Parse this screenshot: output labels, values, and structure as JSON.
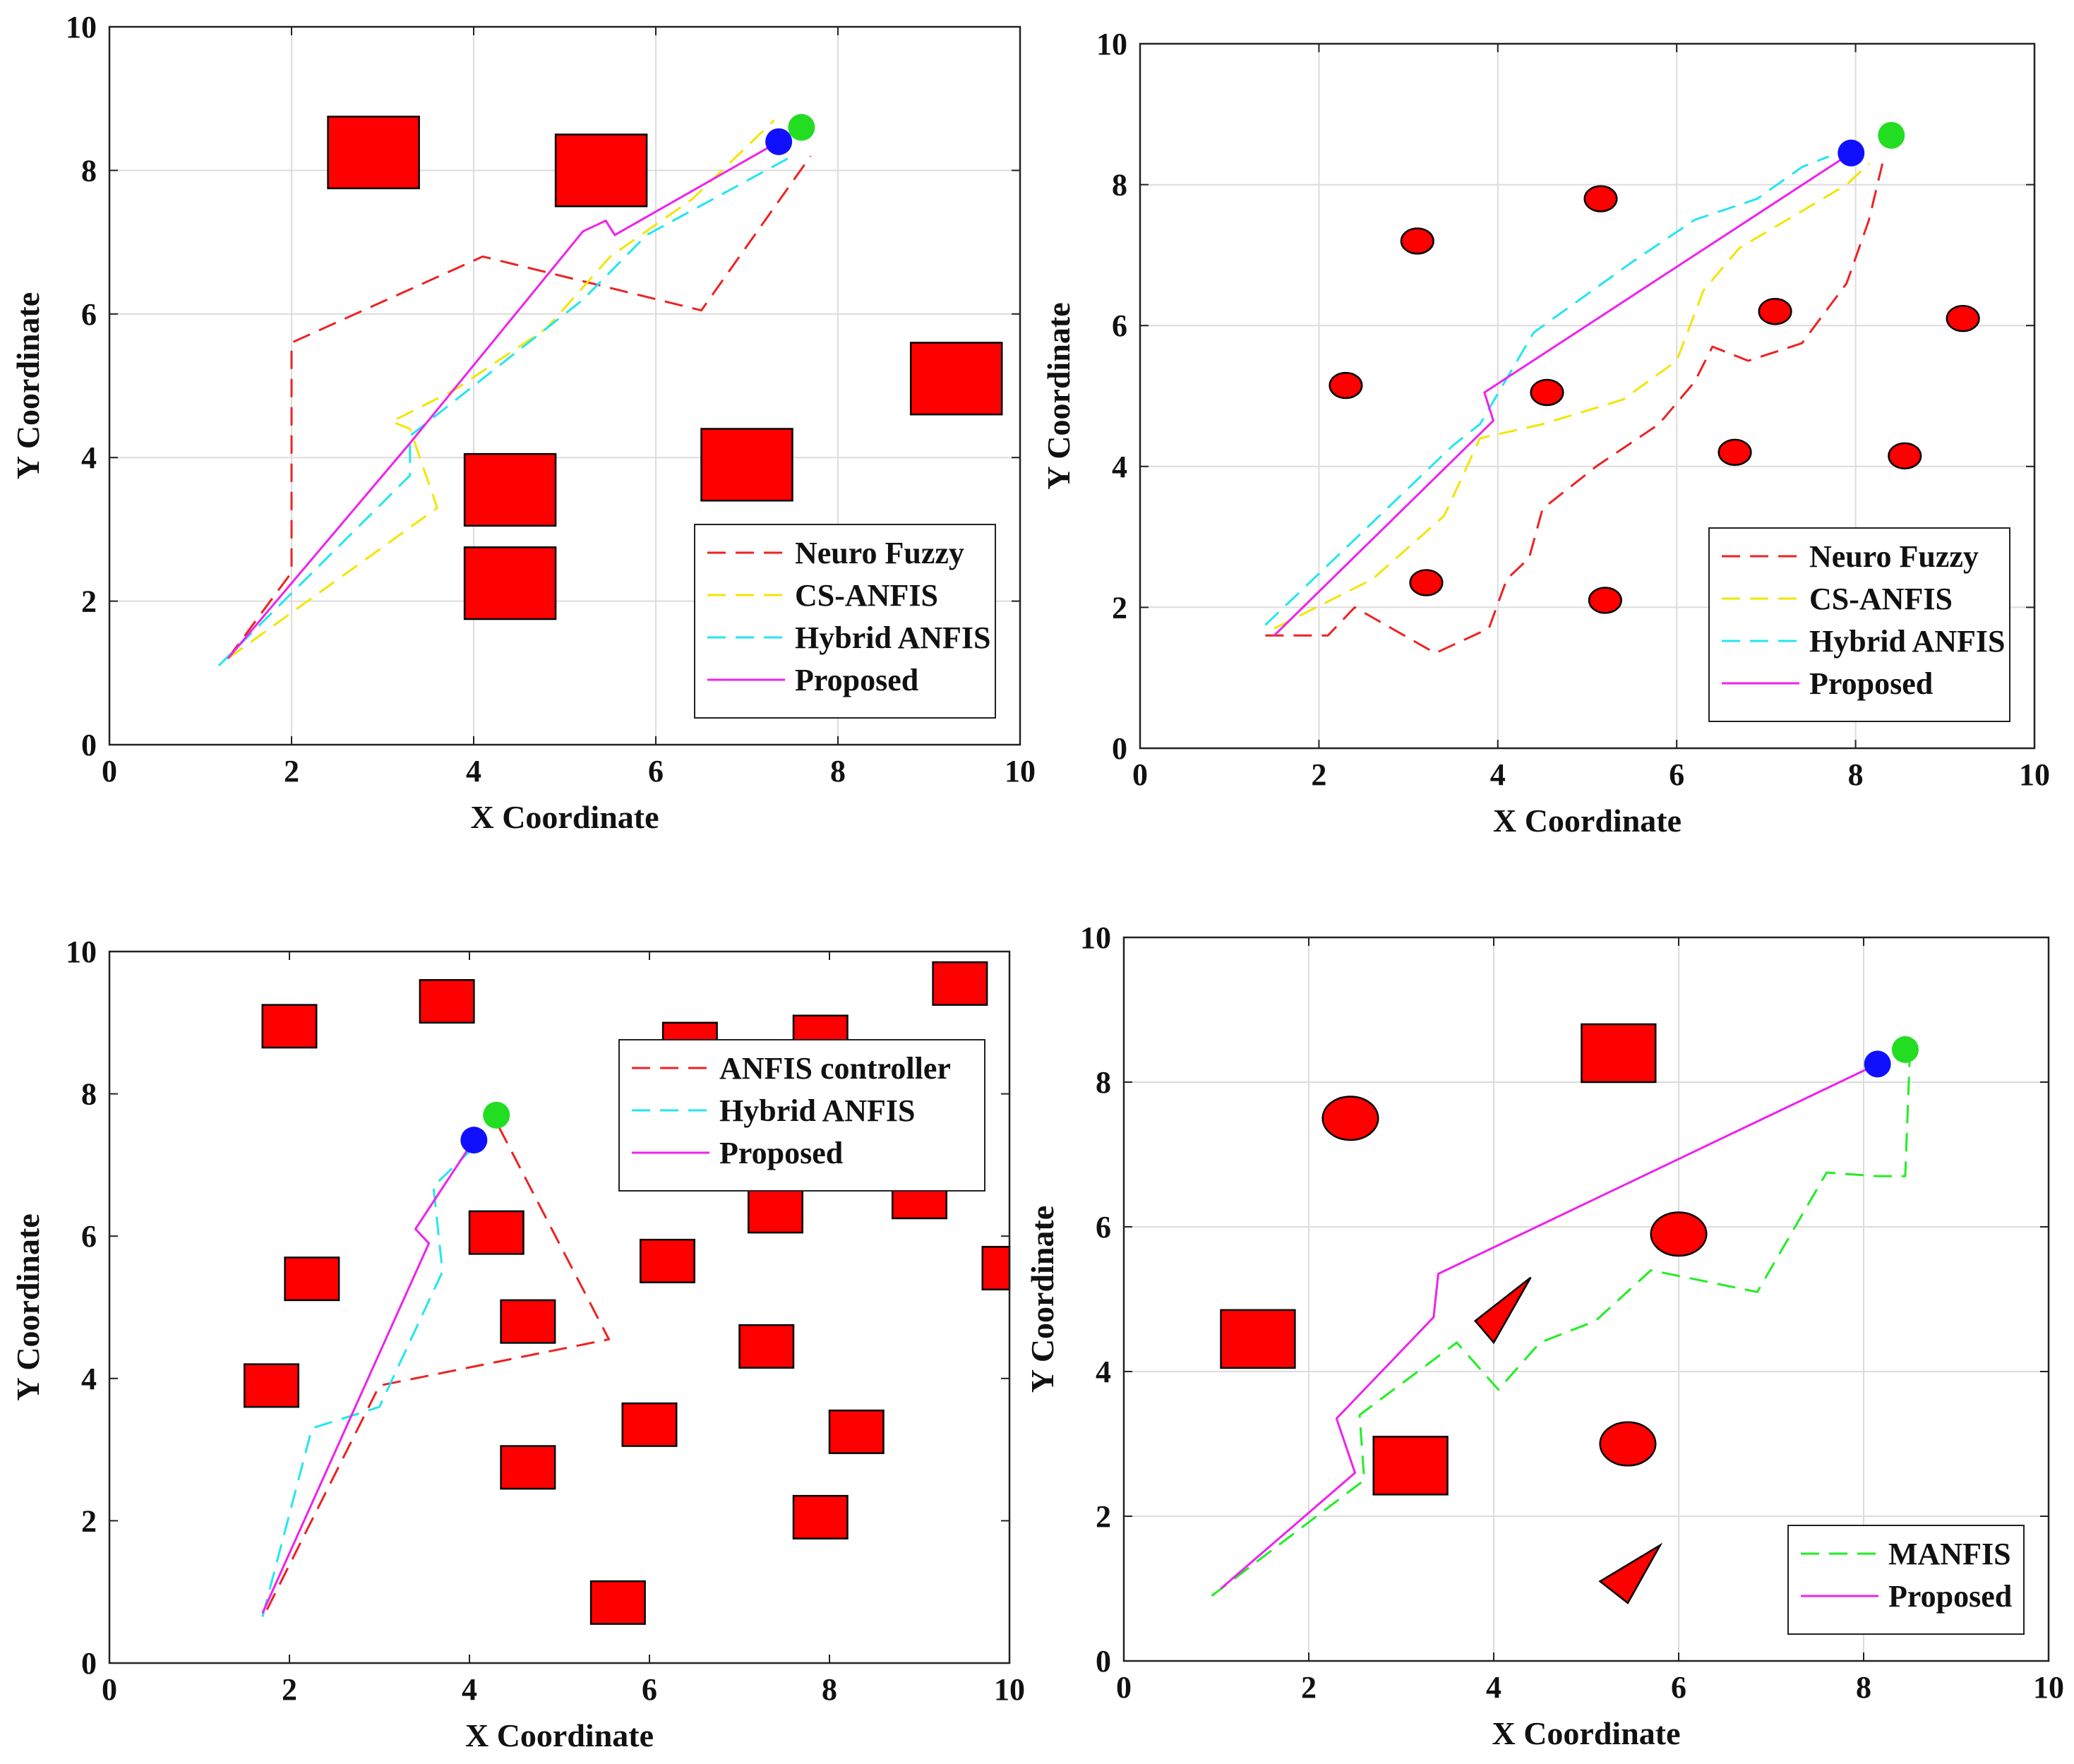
{
  "chart_data": [
    {
      "type": "line",
      "panel": "top-left",
      "xlabel": "X Coordinate",
      "ylabel": "Y Coordinate",
      "xlim": [
        0,
        10
      ],
      "ylim": [
        0,
        10
      ],
      "xticks": [
        "0",
        "2",
        "4",
        "6",
        "8",
        "10"
      ],
      "yticks": [
        "0",
        "2",
        "4",
        "6",
        "8",
        "10"
      ],
      "grid": true,
      "legend_position": "bottom-right",
      "start_marker": {
        "x": 7.6,
        "y": 8.6,
        "color": "#22dd22"
      },
      "goal_marker": {
        "x": 7.35,
        "y": 8.4,
        "color": "#1010ff"
      },
      "obstacles": [
        {
          "shape": "rect",
          "x0": 2.4,
          "y0": 7.75,
          "x1": 3.4,
          "y1": 8.75
        },
        {
          "shape": "rect",
          "x0": 4.9,
          "y0": 7.5,
          "x1": 5.9,
          "y1": 8.5
        },
        {
          "shape": "rect",
          "x0": 8.8,
          "y0": 4.6,
          "x1": 9.8,
          "y1": 5.6
        },
        {
          "shape": "rect",
          "x0": 3.9,
          "y0": 3.05,
          "x1": 4.9,
          "y1": 4.05
        },
        {
          "shape": "rect",
          "x0": 6.5,
          "y0": 3.4,
          "x1": 7.5,
          "y1": 4.4
        },
        {
          "shape": "rect",
          "x0": 3.9,
          "y0": 1.75,
          "x1": 4.9,
          "y1": 2.75
        }
      ],
      "series": [
        {
          "name": "Neuro Fuzzy",
          "color": "#ee2222",
          "dash": true,
          "points": [
            [
              1.3,
              1.2
            ],
            [
              2.0,
              2.4
            ],
            [
              2.0,
              5.6
            ],
            [
              4.1,
              6.8
            ],
            [
              6.5,
              6.05
            ],
            [
              7.7,
              8.2
            ]
          ]
        },
        {
          "name": "CS-ANFIS",
          "color": "#f2e600",
          "dash": true,
          "points": [
            [
              1.3,
              1.2
            ],
            [
              3.6,
              3.3
            ],
            [
              3.3,
              4.4
            ],
            [
              3.1,
              4.5
            ],
            [
              3.8,
              4.95
            ],
            [
              4.8,
              5.8
            ],
            [
              5.5,
              6.8
            ],
            [
              6.4,
              7.6
            ],
            [
              7.3,
              8.7
            ]
          ]
        },
        {
          "name": "Hybrid ANFIS",
          "color": "#22e6f0",
          "dash": true,
          "points": [
            [
              1.2,
              1.1
            ],
            [
              3.3,
              3.75
            ],
            [
              3.3,
              4.3
            ],
            [
              4.2,
              5.2
            ],
            [
              5.2,
              6.2
            ],
            [
              5.9,
              7.1
            ],
            [
              7.5,
              8.2
            ]
          ]
        },
        {
          "name": "Proposed",
          "color": "#ee22ee",
          "dash": false,
          "points": [
            [
              1.3,
              1.2
            ],
            [
              3.3,
              4.2
            ],
            [
              5.2,
              7.15
            ],
            [
              5.45,
              7.3
            ],
            [
              5.55,
              7.1
            ],
            [
              7.35,
              8.4
            ]
          ]
        }
      ]
    },
    {
      "type": "line",
      "panel": "top-right",
      "xlabel": "X Coordinate",
      "ylabel": "Y Coordinate",
      "xlim": [
        0,
        10
      ],
      "ylim": [
        0,
        10
      ],
      "xticks": [
        "0",
        "2",
        "4",
        "6",
        "8",
        "10"
      ],
      "yticks": [
        "0",
        "2",
        "4",
        "6",
        "8",
        "10"
      ],
      "grid": true,
      "legend_position": "bottom-right",
      "start_marker": {
        "x": 8.4,
        "y": 8.7,
        "color": "#22dd22"
      },
      "goal_marker": {
        "x": 7.95,
        "y": 8.45,
        "color": "#1010ff"
      },
      "obstacles": [
        {
          "shape": "ellipse",
          "cx": 3.1,
          "cy": 7.2,
          "rx": 0.18,
          "ry": 0.18
        },
        {
          "shape": "ellipse",
          "cx": 5.15,
          "cy": 7.8,
          "rx": 0.18,
          "ry": 0.18
        },
        {
          "shape": "ellipse",
          "cx": 2.3,
          "cy": 5.15,
          "rx": 0.18,
          "ry": 0.18
        },
        {
          "shape": "ellipse",
          "cx": 4.55,
          "cy": 5.05,
          "rx": 0.18,
          "ry": 0.18
        },
        {
          "shape": "ellipse",
          "cx": 7.1,
          "cy": 6.2,
          "rx": 0.18,
          "ry": 0.18
        },
        {
          "shape": "ellipse",
          "cx": 9.2,
          "cy": 6.1,
          "rx": 0.18,
          "ry": 0.18
        },
        {
          "shape": "ellipse",
          "cx": 6.65,
          "cy": 4.2,
          "rx": 0.18,
          "ry": 0.18
        },
        {
          "shape": "ellipse",
          "cx": 8.55,
          "cy": 4.15,
          "rx": 0.18,
          "ry": 0.18
        },
        {
          "shape": "ellipse",
          "cx": 3.2,
          "cy": 2.35,
          "rx": 0.18,
          "ry": 0.18
        },
        {
          "shape": "ellipse",
          "cx": 5.2,
          "cy": 2.1,
          "rx": 0.18,
          "ry": 0.18
        }
      ],
      "series": [
        {
          "name": "Neuro Fuzzy",
          "color": "#ee2222",
          "dash": true,
          "points": [
            [
              1.4,
              1.6
            ],
            [
              2.1,
              1.6
            ],
            [
              2.4,
              2.0
            ],
            [
              3.3,
              1.35
            ],
            [
              3.9,
              1.7
            ],
            [
              4.1,
              2.4
            ],
            [
              4.35,
              2.7
            ],
            [
              4.5,
              3.4
            ],
            [
              5.1,
              4.0
            ],
            [
              5.8,
              4.6
            ],
            [
              6.2,
              5.2
            ],
            [
              6.4,
              5.7
            ],
            [
              6.8,
              5.5
            ],
            [
              7.4,
              5.75
            ],
            [
              7.9,
              6.6
            ],
            [
              8.15,
              7.5
            ],
            [
              8.3,
              8.3
            ]
          ]
        },
        {
          "name": "CS-ANFIS",
          "color": "#f2e600",
          "dash": true,
          "points": [
            [
              1.5,
              1.7
            ],
            [
              2.6,
              2.4
            ],
            [
              3.4,
              3.3
            ],
            [
              3.8,
              4.4
            ],
            [
              4.5,
              4.6
            ],
            [
              5.4,
              4.95
            ],
            [
              6.0,
              5.5
            ],
            [
              6.3,
              6.5
            ],
            [
              6.7,
              7.1
            ],
            [
              7.3,
              7.55
            ],
            [
              7.9,
              8.0
            ],
            [
              8.15,
              8.3
            ]
          ]
        },
        {
          "name": "Hybrid ANFIS",
          "color": "#22e6f0",
          "dash": true,
          "points": [
            [
              1.4,
              1.75
            ],
            [
              3.5,
              4.3
            ],
            [
              3.8,
              4.6
            ],
            [
              4.4,
              5.9
            ],
            [
              5.5,
              6.9
            ],
            [
              6.2,
              7.5
            ],
            [
              6.9,
              7.8
            ],
            [
              7.4,
              8.25
            ],
            [
              7.7,
              8.4
            ]
          ]
        },
        {
          "name": "Proposed",
          "color": "#ee22ee",
          "dash": false,
          "points": [
            [
              1.5,
              1.6
            ],
            [
              3.95,
              4.65
            ],
            [
              3.85,
              5.05
            ],
            [
              7.95,
              8.45
            ]
          ]
        }
      ]
    },
    {
      "type": "line",
      "panel": "bottom-left",
      "xlabel": "X Coordinate",
      "ylabel": "Y Coordinate",
      "xlim": [
        0,
        10
      ],
      "ylim": [
        0,
        10
      ],
      "xticks": [
        "0",
        "2",
        "4",
        "6",
        "8",
        "10"
      ],
      "yticks": [
        "0",
        "2",
        "4",
        "6",
        "8",
        "10"
      ],
      "grid": false,
      "legend_position": "top-right",
      "start_marker": {
        "x": 4.3,
        "y": 7.7,
        "color": "#22dd22"
      },
      "goal_marker": {
        "x": 4.05,
        "y": 7.35,
        "color": "#1010ff"
      },
      "obstacles": [
        {
          "shape": "rect",
          "x0": 1.7,
          "y0": 8.65,
          "x1": 2.3,
          "y1": 9.25
        },
        {
          "shape": "rect",
          "x0": 3.45,
          "y0": 9.0,
          "x1": 4.05,
          "y1": 9.6
        },
        {
          "shape": "rect",
          "x0": 6.15,
          "y0": 8.6,
          "x1": 6.75,
          "y1": 9.0
        },
        {
          "shape": "rect",
          "x0": 7.6,
          "y0": 8.6,
          "x1": 8.2,
          "y1": 9.1
        },
        {
          "shape": "rect",
          "x0": 9.15,
          "y0": 9.25,
          "x1": 9.75,
          "y1": 9.85
        },
        {
          "shape": "rect",
          "x0": 1.95,
          "y0": 5.1,
          "x1": 2.55,
          "y1": 5.7
        },
        {
          "shape": "rect",
          "x0": 4.0,
          "y0": 5.75,
          "x1": 4.6,
          "y1": 6.35
        },
        {
          "shape": "rect",
          "x0": 5.9,
          "y0": 5.35,
          "x1": 6.5,
          "y1": 5.95
        },
        {
          "shape": "rect",
          "x0": 7.1,
          "y0": 6.05,
          "x1": 7.7,
          "y1": 6.65
        },
        {
          "shape": "rect",
          "x0": 8.7,
          "y0": 6.25,
          "x1": 9.3,
          "y1": 6.85
        },
        {
          "shape": "rect",
          "x0": 9.7,
          "y0": 5.25,
          "x1": 10.0,
          "y1": 5.85
        },
        {
          "shape": "rect",
          "x0": 4.35,
          "y0": 4.5,
          "x1": 4.95,
          "y1": 5.1
        },
        {
          "shape": "rect",
          "x0": 1.5,
          "y0": 3.6,
          "x1": 2.1,
          "y1": 4.2
        },
        {
          "shape": "rect",
          "x0": 7.0,
          "y0": 4.15,
          "x1": 7.6,
          "y1": 4.75
        },
        {
          "shape": "rect",
          "x0": 5.7,
          "y0": 3.05,
          "x1": 6.3,
          "y1": 3.65
        },
        {
          "shape": "rect",
          "x0": 8.0,
          "y0": 2.95,
          "x1": 8.6,
          "y1": 3.55
        },
        {
          "shape": "rect",
          "x0": 4.35,
          "y0": 2.45,
          "x1": 4.95,
          "y1": 3.05
        },
        {
          "shape": "rect",
          "x0": 7.6,
          "y0": 1.75,
          "x1": 8.2,
          "y1": 2.35
        },
        {
          "shape": "rect",
          "x0": 5.35,
          "y0": 0.55,
          "x1": 5.95,
          "y1": 1.15
        }
      ],
      "series": [
        {
          "name": "ANFIS controller",
          "color": "#ee2222",
          "dash": true,
          "points": [
            [
              1.75,
              0.75
            ],
            [
              3.0,
              3.9
            ],
            [
              5.55,
              4.55
            ],
            [
              4.3,
              7.6
            ]
          ]
        },
        {
          "name": "Hybrid ANFIS",
          "color": "#22e6f0",
          "dash": true,
          "points": [
            [
              1.7,
              0.65
            ],
            [
              2.25,
              3.3
            ],
            [
              3.0,
              3.6
            ],
            [
              3.7,
              5.5
            ],
            [
              3.6,
              6.7
            ],
            [
              4.05,
              7.25
            ]
          ]
        },
        {
          "name": "Proposed",
          "color": "#ee22ee",
          "dash": false,
          "points": [
            [
              1.7,
              0.7
            ],
            [
              3.55,
              5.9
            ],
            [
              3.4,
              6.1
            ],
            [
              4.05,
              7.35
            ]
          ]
        }
      ]
    },
    {
      "type": "line",
      "panel": "bottom-right",
      "xlabel": "X Coordinate",
      "ylabel": "Y Coordinate",
      "xlim": [
        0,
        10
      ],
      "ylim": [
        0,
        10
      ],
      "xticks": [
        "0",
        "2",
        "4",
        "6",
        "8",
        "10"
      ],
      "yticks": [
        "0",
        "2",
        "4",
        "6",
        "8",
        "10"
      ],
      "grid": true,
      "legend_position": "bottom-right",
      "start_marker": {
        "x": 8.45,
        "y": 8.45,
        "color": "#22dd22"
      },
      "goal_marker": {
        "x": 8.15,
        "y": 8.25,
        "color": "#1010ff"
      },
      "obstacles": [
        {
          "shape": "rect",
          "x0": 4.95,
          "y0": 8.0,
          "x1": 5.75,
          "y1": 8.8
        },
        {
          "shape": "rect",
          "x0": 1.05,
          "y0": 4.05,
          "x1": 1.85,
          "y1": 4.85
        },
        {
          "shape": "rect",
          "x0": 2.7,
          "y0": 2.3,
          "x1": 3.5,
          "y1": 3.1
        },
        {
          "shape": "ellipse",
          "cx": 2.45,
          "cy": 7.5,
          "rx": 0.3,
          "ry": 0.3
        },
        {
          "shape": "ellipse",
          "cx": 6.0,
          "cy": 5.9,
          "rx": 0.3,
          "ry": 0.3
        },
        {
          "shape": "ellipse",
          "cx": 5.45,
          "cy": 3.0,
          "rx": 0.3,
          "ry": 0.3
        },
        {
          "shape": "triangle",
          "points": [
            [
              3.8,
              4.7
            ],
            [
              4.4,
              5.3
            ],
            [
              4.0,
              4.4
            ]
          ]
        },
        {
          "shape": "triangle",
          "points": [
            [
              5.15,
              1.1
            ],
            [
              5.8,
              1.6
            ],
            [
              5.45,
              0.8
            ]
          ]
        }
      ],
      "series": [
        {
          "name": "MANFIS",
          "color": "#22ee22",
          "dash": true,
          "points": [
            [
              0.95,
              0.9
            ],
            [
              2.6,
              2.5
            ],
            [
              2.55,
              3.4
            ],
            [
              3.6,
              4.4
            ],
            [
              4.05,
              3.75
            ],
            [
              4.5,
              4.4
            ],
            [
              5.1,
              4.7
            ],
            [
              5.7,
              5.4
            ],
            [
              6.85,
              5.1
            ],
            [
              7.6,
              6.75
            ],
            [
              8.15,
              6.7
            ],
            [
              8.45,
              6.7
            ],
            [
              8.5,
              8.4
            ]
          ]
        },
        {
          "name": "Proposed",
          "color": "#ee22ee",
          "dash": false,
          "points": [
            [
              1.05,
              1.0
            ],
            [
              2.5,
              2.6
            ],
            [
              2.3,
              3.35
            ],
            [
              3.35,
              4.75
            ],
            [
              3.4,
              5.35
            ],
            [
              8.15,
              8.25
            ]
          ]
        }
      ]
    }
  ]
}
